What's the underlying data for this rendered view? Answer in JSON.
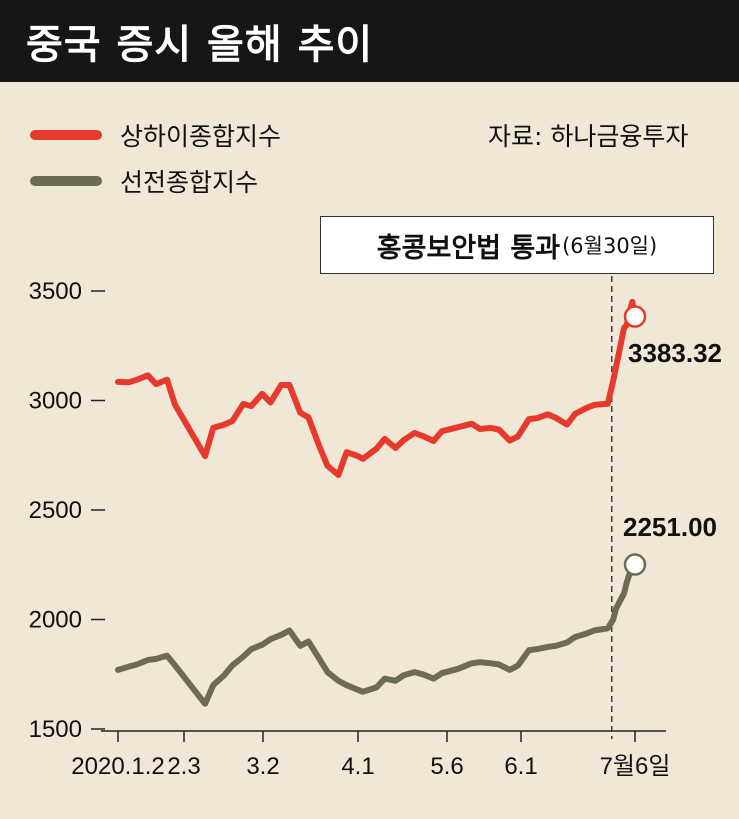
{
  "header": {
    "title": "중국 증시 올해 추이"
  },
  "source": "자료: 하나금융투자",
  "annotation": {
    "main": "홍콩보안법 통과",
    "sub": "(6월30일)"
  },
  "colors": {
    "shanghai": "#e53a2c",
    "shenzhen": "#6d6b58",
    "background": "#f1e7d6",
    "header": "#161616"
  },
  "chart_data": {
    "type": "line",
    "x_ticks": [
      "2020.1.2",
      "2.3",
      "3.2",
      "4.1",
      "5.6",
      "6.1",
      "7월6일"
    ],
    "y_ticks": [
      1500,
      2000,
      2500,
      3000,
      3500
    ],
    "ylim": [
      1500,
      3500
    ],
    "grid": false,
    "legend_position": "top-left",
    "series": [
      {
        "name": "상하이종합지수",
        "color": "#e53a2c",
        "end_label": "3383.32",
        "values": [
          [
            "2020-01-02",
            3085
          ],
          [
            "2020-01-06",
            3083
          ],
          [
            "2020-01-09",
            3095
          ],
          [
            "2020-01-13",
            3115
          ],
          [
            "2020-01-16",
            3075
          ],
          [
            "2020-01-20",
            3095
          ],
          [
            "2020-01-23",
            2980
          ],
          [
            "2020-02-03",
            2746
          ],
          [
            "2020-02-06",
            2875
          ],
          [
            "2020-02-10",
            2890
          ],
          [
            "2020-02-13",
            2906
          ],
          [
            "2020-02-17",
            2984
          ],
          [
            "2020-02-20",
            2975
          ],
          [
            "2020-02-24",
            3031
          ],
          [
            "2020-02-27",
            2991
          ],
          [
            "2020-03-02",
            3071
          ],
          [
            "2020-03-05",
            3071
          ],
          [
            "2020-03-09",
            2944
          ],
          [
            "2020-03-12",
            2923
          ],
          [
            "2020-03-16",
            2790
          ],
          [
            "2020-03-19",
            2702
          ],
          [
            "2020-03-23",
            2660
          ],
          [
            "2020-03-26",
            2764
          ],
          [
            "2020-03-30",
            2747
          ],
          [
            "2020-04-01",
            2734
          ],
          [
            "2020-04-06",
            2780
          ],
          [
            "2020-04-09",
            2825
          ],
          [
            "2020-04-13",
            2783
          ],
          [
            "2020-04-16",
            2819
          ],
          [
            "2020-04-20",
            2852
          ],
          [
            "2020-04-23",
            2838
          ],
          [
            "2020-04-27",
            2815
          ],
          [
            "2020-04-30",
            2860
          ],
          [
            "2020-05-06",
            2878
          ],
          [
            "2020-05-11",
            2894
          ],
          [
            "2020-05-14",
            2870
          ],
          [
            "2020-05-18",
            2875
          ],
          [
            "2020-05-21",
            2867
          ],
          [
            "2020-05-25",
            2817
          ],
          [
            "2020-05-28",
            2836
          ],
          [
            "2020-06-01",
            2915
          ],
          [
            "2020-06-04",
            2919
          ],
          [
            "2020-06-08",
            2937
          ],
          [
            "2020-06-11",
            2920
          ],
          [
            "2020-06-15",
            2890
          ],
          [
            "2020-06-18",
            2939
          ],
          [
            "2020-06-22",
            2965
          ],
          [
            "2020-06-25",
            2980
          ],
          [
            "2020-06-30",
            2985
          ],
          [
            "2020-07-02",
            3090
          ],
          [
            "2020-07-03",
            3152
          ],
          [
            "2020-07-06",
            3332
          ],
          [
            "2020-07-07",
            3345
          ],
          [
            "2020-07-08",
            3403
          ],
          [
            "2020-07-09",
            3450
          ],
          [
            "2020-07-10",
            3383.32
          ]
        ]
      },
      {
        "name": "선전종합지수",
        "color": "#6d6b58",
        "end_label": "2251.00",
        "values": [
          [
            "2020-01-02",
            1770
          ],
          [
            "2020-01-06",
            1785
          ],
          [
            "2020-01-09",
            1795
          ],
          [
            "2020-01-13",
            1815
          ],
          [
            "2020-01-16",
            1820
          ],
          [
            "2020-01-20",
            1835
          ],
          [
            "2020-01-23",
            1790
          ],
          [
            "2020-02-03",
            1615
          ],
          [
            "2020-02-06",
            1700
          ],
          [
            "2020-02-10",
            1745
          ],
          [
            "2020-02-13",
            1790
          ],
          [
            "2020-02-17",
            1830
          ],
          [
            "2020-02-20",
            1865
          ],
          [
            "2020-02-24",
            1885
          ],
          [
            "2020-02-27",
            1910
          ],
          [
            "2020-03-02",
            1930
          ],
          [
            "2020-03-05",
            1950
          ],
          [
            "2020-03-09",
            1880
          ],
          [
            "2020-03-12",
            1900
          ],
          [
            "2020-03-16",
            1820
          ],
          [
            "2020-03-19",
            1760
          ],
          [
            "2020-03-23",
            1720
          ],
          [
            "2020-03-26",
            1700
          ],
          [
            "2020-03-30",
            1680
          ],
          [
            "2020-04-01",
            1670
          ],
          [
            "2020-04-06",
            1690
          ],
          [
            "2020-04-09",
            1730
          ],
          [
            "2020-04-13",
            1720
          ],
          [
            "2020-04-16",
            1745
          ],
          [
            "2020-04-20",
            1760
          ],
          [
            "2020-04-23",
            1750
          ],
          [
            "2020-04-27",
            1730
          ],
          [
            "2020-04-30",
            1755
          ],
          [
            "2020-05-06",
            1775
          ],
          [
            "2020-05-11",
            1800
          ],
          [
            "2020-05-14",
            1805
          ],
          [
            "2020-05-18",
            1800
          ],
          [
            "2020-05-21",
            1795
          ],
          [
            "2020-05-25",
            1770
          ],
          [
            "2020-05-28",
            1790
          ],
          [
            "2020-06-01",
            1860
          ],
          [
            "2020-06-04",
            1865
          ],
          [
            "2020-06-08",
            1875
          ],
          [
            "2020-06-11",
            1880
          ],
          [
            "2020-06-15",
            1895
          ],
          [
            "2020-06-18",
            1920
          ],
          [
            "2020-06-22",
            1935
          ],
          [
            "2020-06-25",
            1950
          ],
          [
            "2020-06-30",
            1960
          ],
          [
            "2020-07-02",
            2000
          ],
          [
            "2020-07-03",
            2050
          ],
          [
            "2020-07-06",
            2120
          ],
          [
            "2020-07-07",
            2170
          ],
          [
            "2020-07-08",
            2210
          ],
          [
            "2020-07-09",
            2235
          ],
          [
            "2020-07-10",
            2251.0
          ]
        ]
      }
    ]
  }
}
